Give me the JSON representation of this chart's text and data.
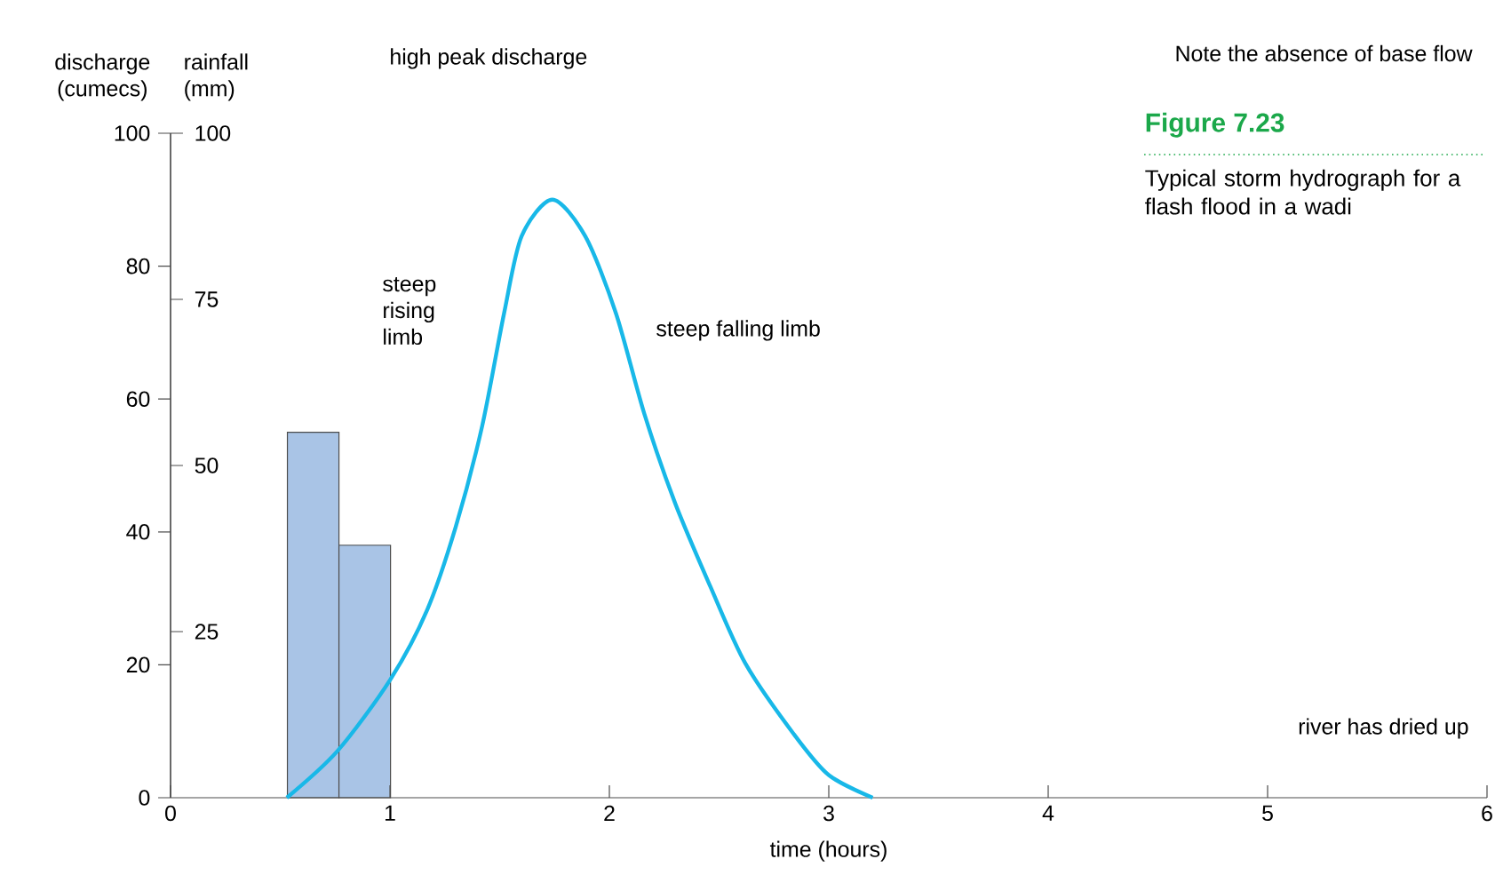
{
  "chart_data": {
    "type": "line",
    "title": "Figure 7.23",
    "subtitle": "Typical storm hydrograph for a flash flood in a wadi",
    "xlabel": "time (hours)",
    "ylabel": "discharge (cumecs)",
    "y2label": "rainfall (mm)",
    "xlim": [
      0,
      6
    ],
    "xticks": [
      0,
      1,
      2,
      3,
      4,
      5,
      6
    ],
    "ylim": [
      0,
      100
    ],
    "yticks": [
      0,
      20,
      40,
      60,
      80,
      100
    ],
    "y2lim": [
      0,
      100
    ],
    "y2ticks": [
      25,
      50,
      75,
      100
    ],
    "annotations": [
      "high peak discharge",
      "steep rising limb",
      "steep falling limb",
      "river has dried up",
      "Note the absence of base flow"
    ],
    "series": [
      {
        "type": "bar",
        "axis": "y2",
        "color": "#a9c4e6",
        "x": [
          0.65,
          0.885
        ],
        "values": [
          55,
          38
        ]
      },
      {
        "color": "#18b8e8",
        "x": [
          0.53,
          0.76,
          1.0,
          1.17,
          1.3,
          1.42,
          1.52,
          1.6,
          1.74,
          1.89,
          2.03,
          2.16,
          2.3,
          2.46,
          2.62,
          2.84,
          3.0,
          3.2
        ],
        "values": [
          0,
          7,
          17.7,
          28.3,
          40.8,
          55.9,
          72.9,
          84.5,
          90,
          84.5,
          72.9,
          57.7,
          44.3,
          31.8,
          20.2,
          9.6,
          3.4,
          0
        ]
      }
    ]
  }
}
